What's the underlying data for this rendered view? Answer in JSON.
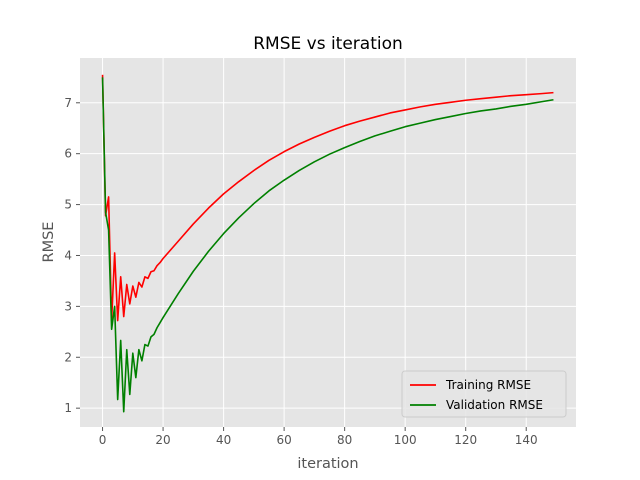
{
  "chart_data": {
    "type": "line",
    "title": "RMSE vs iteration",
    "xlabel": "iteration",
    "ylabel": "RMSE",
    "xlim": [
      -7.45,
      156.45
    ],
    "ylim": [
      0.63,
      7.88
    ],
    "xticks": [
      0,
      20,
      40,
      60,
      80,
      100,
      120,
      140
    ],
    "yticks": [
      1,
      2,
      3,
      4,
      5,
      6,
      7
    ],
    "grid": true,
    "legend_position": "lower-right",
    "series": [
      {
        "name": "Training RMSE",
        "color": "#ff0000",
        "x": [
          0,
          1,
          2,
          3,
          4,
          5,
          6,
          7,
          8,
          9,
          10,
          11,
          12,
          13,
          14,
          15,
          16,
          17,
          18,
          19,
          20,
          25,
          30,
          35,
          40,
          45,
          50,
          55,
          60,
          65,
          70,
          75,
          80,
          85,
          90,
          95,
          100,
          105,
          110,
          115,
          120,
          125,
          130,
          135,
          140,
          145,
          149
        ],
        "values": [
          7.55,
          4.78,
          5.15,
          2.72,
          4.05,
          2.72,
          3.58,
          2.8,
          3.43,
          3.05,
          3.4,
          3.18,
          3.47,
          3.38,
          3.58,
          3.55,
          3.68,
          3.7,
          3.8,
          3.86,
          3.94,
          4.28,
          4.62,
          4.93,
          5.21,
          5.45,
          5.67,
          5.87,
          6.04,
          6.19,
          6.32,
          6.44,
          6.55,
          6.64,
          6.72,
          6.8,
          6.86,
          6.92,
          6.97,
          7.01,
          7.05,
          7.08,
          7.11,
          7.14,
          7.16,
          7.18,
          7.2
        ]
      },
      {
        "name": "Validation RMSE",
        "color": "#008000",
        "x": [
          0,
          1,
          2,
          3,
          4,
          5,
          6,
          7,
          8,
          9,
          10,
          11,
          12,
          13,
          14,
          15,
          16,
          17,
          18,
          19,
          20,
          25,
          30,
          35,
          40,
          45,
          50,
          55,
          60,
          65,
          70,
          75,
          80,
          85,
          90,
          95,
          100,
          105,
          110,
          115,
          120,
          125,
          130,
          135,
          140,
          145,
          149
        ],
        "values": [
          7.5,
          4.85,
          4.5,
          2.55,
          3.0,
          1.17,
          2.33,
          0.93,
          2.15,
          1.27,
          2.08,
          1.6,
          2.15,
          1.93,
          2.25,
          2.22,
          2.4,
          2.45,
          2.58,
          2.68,
          2.78,
          3.25,
          3.69,
          4.08,
          4.43,
          4.74,
          5.02,
          5.27,
          5.48,
          5.67,
          5.84,
          5.99,
          6.12,
          6.24,
          6.35,
          6.44,
          6.53,
          6.6,
          6.67,
          6.73,
          6.79,
          6.84,
          6.88,
          6.93,
          6.97,
          7.02,
          7.06
        ]
      }
    ]
  }
}
